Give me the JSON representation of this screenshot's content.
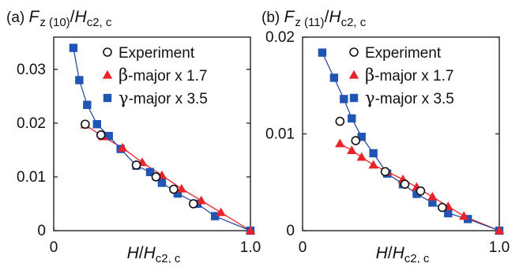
{
  "chart_data": [
    {
      "type": "scatter",
      "panel_label": "(a)",
      "ylabel": {
        "pre": "F",
        "sub1": "z (10)",
        "mid": "/",
        "var": "H",
        "sub2": "c2, c"
      },
      "xlabel": {
        "var": "H",
        "mid": "/",
        "var2": "H",
        "sub": "c2, c"
      },
      "xlim": [
        0,
        1.0
      ],
      "ylim": [
        0,
        0.036
      ],
      "x_ticks": [
        {
          "v": 0,
          "label": "0"
        },
        {
          "v": 1.0,
          "label": "1.0"
        }
      ],
      "y_ticks": [
        {
          "v": 0,
          "label": "0"
        },
        {
          "v": 0.01,
          "label": "0.01"
        },
        {
          "v": 0.02,
          "label": "0.02"
        },
        {
          "v": 0.03,
          "label": "0.03"
        }
      ],
      "legend": [
        {
          "marker": "circle",
          "label": "Experiment"
        },
        {
          "marker": "triangle",
          "greek": "β",
          "label": "-major x 1.7"
        },
        {
          "marker": "square",
          "greek": "γ",
          "label": "-major x 3.5"
        }
      ],
      "series": [
        {
          "marker": "circle",
          "points": [
            [
              0.16,
              0.0198
            ],
            [
              0.24,
              0.0178
            ],
            [
              0.42,
              0.0122
            ],
            [
              0.52,
              0.01
            ],
            [
              0.61,
              0.0077
            ],
            [
              0.71,
              0.005
            ]
          ]
        },
        {
          "marker": "triangle",
          "line": true,
          "points": [
            [
              0.16,
              0.0197
            ],
            [
              0.25,
              0.0175
            ],
            [
              0.35,
              0.0154
            ],
            [
              0.45,
              0.0127
            ],
            [
              0.55,
              0.0103
            ],
            [
              0.65,
              0.0078
            ],
            [
              0.75,
              0.0056
            ],
            [
              0.85,
              0.0034
            ],
            [
              1.0,
              0.0
            ]
          ]
        },
        {
          "marker": "square",
          "line": true,
          "points": [
            [
              0.1,
              0.034
            ],
            [
              0.13,
              0.028
            ],
            [
              0.17,
              0.0234
            ],
            [
              0.22,
              0.0198
            ],
            [
              0.28,
              0.0176
            ],
            [
              0.34,
              0.0152
            ],
            [
              0.42,
              0.0121
            ],
            [
              0.49,
              0.0109
            ],
            [
              0.55,
              0.0089
            ],
            [
              0.63,
              0.0069
            ],
            [
              0.73,
              0.005
            ],
            [
              0.82,
              0.0027
            ],
            [
              1.0,
              0.0
            ]
          ]
        }
      ],
      "colors": {
        "triangle": "#e8232a",
        "square": "#2155b4",
        "line": "#2c4f9a",
        "circle": "#111111"
      }
    },
    {
      "type": "scatter",
      "panel_label": "(b)",
      "ylabel": {
        "pre": "F",
        "sub1": "z (11)",
        "mid": "/",
        "var": "H",
        "sub2": "c2, c"
      },
      "xlabel": {
        "var": "H",
        "mid": "/",
        "var2": "H",
        "sub": "c2, c"
      },
      "xlim": [
        0,
        1.0
      ],
      "ylim": [
        0,
        0.02
      ],
      "x_ticks": [
        {
          "v": 0,
          "label": "0"
        },
        {
          "v": 1.0,
          "label": "1.0"
        }
      ],
      "y_ticks": [
        {
          "v": 0,
          "label": "0"
        },
        {
          "v": 0.01,
          "label": "0.01"
        },
        {
          "v": 0.02,
          "label": "0.02"
        }
      ],
      "legend": [
        {
          "marker": "circle",
          "label": "Experiment"
        },
        {
          "marker": "triangle",
          "greek": "β",
          "label": "-major x 1.7"
        },
        {
          "marker": "square",
          "greek": "γ",
          "label": "-major x 3.5"
        }
      ],
      "series": [
        {
          "marker": "circle",
          "points": [
            [
              0.19,
              0.0113
            ],
            [
              0.27,
              0.0093
            ],
            [
              0.42,
              0.0061
            ],
            [
              0.52,
              0.0048
            ],
            [
              0.6,
              0.0041
            ],
            [
              0.71,
              0.0024
            ]
          ]
        },
        {
          "marker": "triangle",
          "line": true,
          "points": [
            [
              0.19,
              0.009
            ],
            [
              0.25,
              0.0083
            ],
            [
              0.3,
              0.0076
            ],
            [
              0.36,
              0.0068
            ],
            [
              0.43,
              0.0061
            ],
            [
              0.51,
              0.0053
            ],
            [
              0.58,
              0.0045
            ],
            [
              0.66,
              0.0035
            ],
            [
              0.74,
              0.0025
            ],
            [
              0.82,
              0.0015
            ],
            [
              1.0,
              0.0
            ]
          ]
        },
        {
          "marker": "square",
          "line": true,
          "points": [
            [
              0.1,
              0.0184
            ],
            [
              0.16,
              0.0158
            ],
            [
              0.21,
              0.0136
            ],
            [
              0.25,
              0.0116
            ],
            [
              0.3,
              0.0097
            ],
            [
              0.36,
              0.008
            ],
            [
              0.43,
              0.0059
            ],
            [
              0.51,
              0.0048
            ],
            [
              0.58,
              0.0038
            ],
            [
              0.66,
              0.0029
            ],
            [
              0.74,
              0.0018
            ],
            [
              0.84,
              0.0012
            ],
            [
              1.0,
              0.0
            ]
          ]
        }
      ],
      "colors": {
        "triangle": "#e8232a",
        "square": "#2155b4",
        "line": "#2c4f9a",
        "circle": "#111111"
      }
    }
  ]
}
